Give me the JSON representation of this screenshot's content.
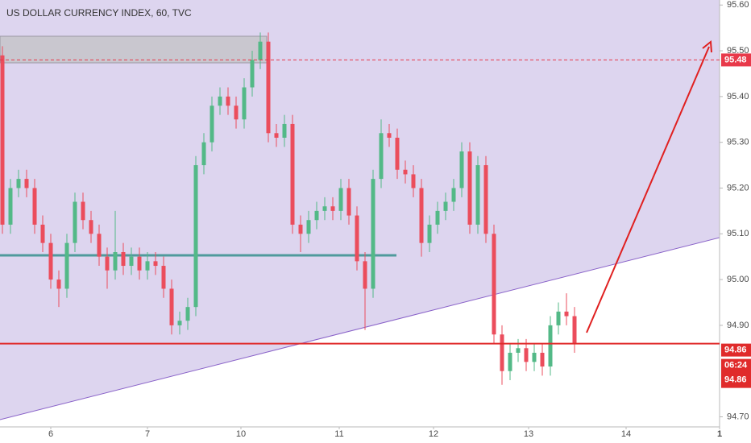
{
  "chart_data": {
    "type": "candlestick",
    "title": "US DOLLAR CURRENCY INDEX, 60, TVC",
    "x": [
      0,
      1,
      2,
      3,
      4,
      5,
      6,
      7,
      8,
      9,
      10,
      11,
      12,
      13,
      14,
      15,
      16,
      17,
      18,
      19,
      20,
      21,
      22,
      23,
      24,
      25,
      26,
      27,
      28,
      29,
      30,
      31,
      32,
      33,
      34,
      35,
      36,
      37,
      38,
      39,
      40,
      41,
      42,
      43,
      44,
      45,
      46,
      47,
      48,
      49,
      50,
      51,
      52,
      53,
      54,
      55,
      56,
      57,
      58,
      59,
      60,
      61,
      62,
      63,
      64,
      65,
      66,
      67,
      68,
      69,
      70,
      71
    ],
    "open": [
      95.49,
      95.12,
      95.2,
      95.22,
      95.2,
      95.12,
      95.08,
      95.0,
      94.98,
      95.08,
      95.17,
      95.13,
      95.1,
      95.05,
      95.02,
      95.06,
      95.03,
      95.05,
      95.02,
      95.04,
      95.03,
      94.98,
      94.9,
      94.91,
      94.94,
      95.25,
      95.3,
      95.38,
      95.4,
      95.38,
      95.35,
      95.42,
      95.48,
      95.52,
      95.32,
      95.31,
      95.34,
      95.12,
      95.1,
      95.13,
      95.15,
      95.16,
      95.15,
      95.2,
      95.14,
      95.04,
      94.98,
      95.22,
      95.32,
      95.31,
      95.24,
      95.23,
      95.2,
      95.08,
      95.12,
      95.15,
      95.17,
      95.2,
      95.28,
      95.12,
      95.25,
      95.1,
      94.88,
      94.8,
      94.84,
      94.85,
      94.82,
      94.84,
      94.81,
      94.9,
      94.93,
      94.92
    ],
    "high": [
      95.51,
      95.22,
      95.24,
      95.24,
      95.22,
      95.14,
      95.1,
      95.02,
      95.1,
      95.19,
      95.19,
      95.15,
      95.12,
      95.07,
      95.15,
      95.08,
      95.07,
      95.07,
      95.06,
      95.06,
      95.05,
      95.0,
      94.93,
      94.96,
      95.27,
      95.32,
      95.4,
      95.42,
      95.42,
      95.4,
      95.44,
      95.5,
      95.54,
      95.54,
      95.34,
      95.36,
      95.36,
      95.14,
      95.15,
      95.17,
      95.18,
      95.18,
      95.22,
      95.22,
      95.16,
      95.06,
      95.24,
      95.35,
      95.34,
      95.33,
      95.26,
      95.25,
      95.22,
      95.14,
      95.17,
      95.19,
      95.22,
      95.3,
      95.3,
      95.27,
      95.27,
      95.12,
      94.9,
      94.86,
      94.87,
      94.87,
      94.86,
      94.86,
      94.92,
      94.95,
      94.97,
      94.94
    ],
    "low": [
      95.1,
      95.1,
      95.18,
      95.18,
      95.1,
      95.06,
      94.98,
      94.94,
      94.96,
      95.06,
      95.11,
      95.08,
      95.03,
      94.98,
      95.0,
      95.01,
      95.01,
      95.0,
      95.0,
      95.01,
      94.96,
      94.88,
      94.88,
      94.89,
      94.92,
      95.23,
      95.28,
      95.36,
      95.36,
      95.33,
      95.33,
      95.4,
      95.46,
      95.3,
      95.29,
      95.29,
      95.1,
      95.06,
      95.08,
      95.11,
      95.13,
      95.13,
      95.13,
      95.12,
      95.02,
      94.89,
      94.96,
      95.2,
      95.29,
      95.22,
      95.21,
      95.18,
      95.05,
      95.06,
      95.1,
      95.13,
      95.15,
      95.18,
      95.1,
      95.1,
      95.08,
      94.86,
      94.77,
      94.78,
      94.82,
      94.8,
      94.8,
      94.79,
      94.79,
      94.88,
      94.9,
      94.84
    ],
    "close": [
      95.12,
      95.2,
      95.22,
      95.2,
      95.12,
      95.08,
      95.0,
      94.98,
      95.08,
      95.17,
      95.13,
      95.1,
      95.05,
      95.02,
      95.06,
      95.03,
      95.05,
      95.02,
      95.04,
      95.03,
      94.98,
      94.9,
      94.91,
      94.94,
      95.25,
      95.3,
      95.38,
      95.4,
      95.38,
      95.35,
      95.42,
      95.48,
      95.52,
      95.32,
      95.31,
      95.34,
      95.12,
      95.1,
      95.13,
      95.15,
      95.16,
      95.15,
      95.2,
      95.14,
      95.04,
      94.98,
      95.22,
      95.32,
      95.31,
      95.24,
      95.23,
      95.2,
      95.08,
      95.12,
      95.15,
      95.17,
      95.2,
      95.28,
      95.12,
      95.25,
      95.1,
      94.88,
      94.8,
      94.84,
      94.85,
      94.82,
      94.84,
      94.81,
      94.9,
      94.93,
      94.92,
      94.86
    ],
    "up_color": "#53b987",
    "down_color": "#eb4d5c",
    "xlim": [
      -0.3,
      89
    ],
    "xticks": [
      {
        "value": 6,
        "label": "6"
      },
      {
        "value": 18,
        "label": "7"
      },
      {
        "value": 29.6,
        "label": "10"
      },
      {
        "value": 41.8,
        "label": "11"
      },
      {
        "value": 53.5,
        "label": "12"
      },
      {
        "value": 65.3,
        "label": "13"
      },
      {
        "value": 77.4,
        "label": "14"
      },
      {
        "value": 89,
        "label": "1"
      }
    ],
    "ylim": [
      94.678,
      95.611
    ],
    "yticks": [
      {
        "value": 94.7,
        "label": "94.70"
      },
      {
        "value": 94.9,
        "label": "94.90"
      },
      {
        "value": 95.0,
        "label": "95.00"
      },
      {
        "value": 95.1,
        "label": "95.10"
      },
      {
        "value": 95.2,
        "label": "95.20"
      },
      {
        "value": 95.3,
        "label": "95.30"
      },
      {
        "value": 95.4,
        "label": "95.40"
      },
      {
        "value": 95.5,
        "label": "95.50"
      },
      {
        "value": 95.6,
        "label": "95.60"
      }
    ],
    "levels": [
      {
        "value": 95.48,
        "color": "#e8394a",
        "dashed": true
      },
      {
        "value": 94.86,
        "color": "#e02b2b",
        "dashed": false
      }
    ],
    "countdown": "06:24"
  }
}
